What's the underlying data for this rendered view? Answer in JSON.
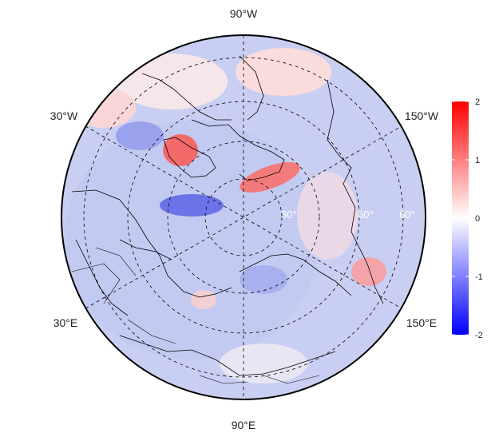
{
  "map": {
    "projection": "north-polar-stereographic",
    "longitude_labels": {
      "top": "90°W",
      "bottom": "90°E",
      "upper_left": "30°W",
      "upper_right": "150°W",
      "lower_left": "30°E",
      "lower_right": "150°E"
    },
    "latitude_labels": [
      "30°",
      "60°",
      "60°"
    ],
    "colors": {
      "negative": "#0000ff",
      "zero": "#ffffff",
      "positive": "#ff0000",
      "coastline": "#000000",
      "graticule": "#000000"
    }
  },
  "colorbar": {
    "min": -2,
    "max": 2,
    "ticks": [
      "2",
      "1",
      "0",
      "-1",
      "-2"
    ]
  }
}
